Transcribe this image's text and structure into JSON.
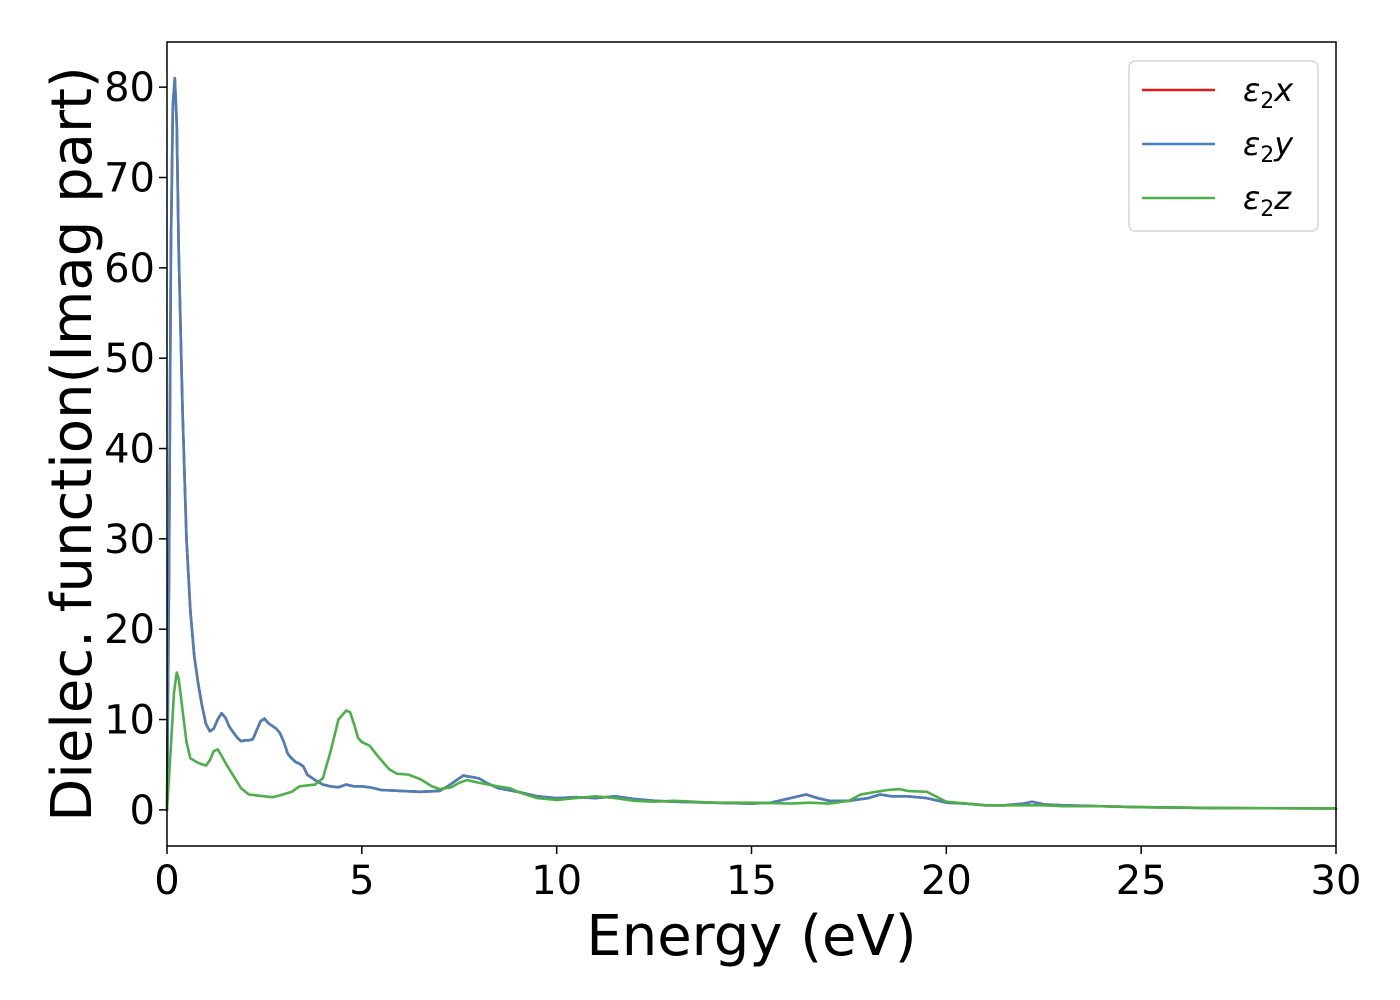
{
  "chart_data": {
    "type": "line",
    "xlabel": "Energy (eV)",
    "ylabel": "Dielec. function(Imag part)",
    "xlim": [
      0,
      30
    ],
    "ylim": [
      -4,
      85
    ],
    "x_ticks": [
      0,
      5,
      10,
      15,
      20,
      25,
      30
    ],
    "y_ticks": [
      0,
      10,
      20,
      30,
      40,
      50,
      60,
      70,
      80
    ],
    "grid": false,
    "legend_position": "top-right",
    "series": [
      {
        "name": "ε2x",
        "symbol": "ε",
        "subscript": "2",
        "suffix": "x",
        "color": "#e41a1c",
        "points": [
          [
            0,
            0
          ],
          [
            0.05,
            25
          ],
          [
            0.1,
            62
          ],
          [
            0.15,
            78
          ],
          [
            0.2,
            81
          ],
          [
            0.25,
            76
          ],
          [
            0.3,
            62
          ],
          [
            0.4,
            44
          ],
          [
            0.5,
            30
          ],
          [
            0.6,
            22
          ],
          [
            0.7,
            17
          ],
          [
            0.8,
            14
          ],
          [
            0.9,
            11.5
          ],
          [
            1.0,
            9.5
          ],
          [
            1.1,
            8.7
          ],
          [
            1.2,
            9.0
          ],
          [
            1.3,
            10.0
          ],
          [
            1.4,
            10.7
          ],
          [
            1.5,
            10.2
          ],
          [
            1.6,
            9.2
          ],
          [
            1.7,
            8.6
          ],
          [
            1.8,
            8.0
          ],
          [
            1.9,
            7.6
          ],
          [
            2.0,
            7.7
          ],
          [
            2.1,
            7.7
          ],
          [
            2.2,
            7.8
          ],
          [
            2.3,
            8.8
          ],
          [
            2.4,
            9.8
          ],
          [
            2.5,
            10.1
          ],
          [
            2.6,
            9.6
          ],
          [
            2.7,
            9.3
          ],
          [
            2.8,
            9.0
          ],
          [
            2.9,
            8.5
          ],
          [
            3.0,
            7.5
          ],
          [
            3.1,
            6.2
          ],
          [
            3.2,
            5.7
          ],
          [
            3.3,
            5.3
          ],
          [
            3.4,
            5.1
          ],
          [
            3.5,
            4.8
          ],
          [
            3.6,
            3.9
          ],
          [
            3.8,
            3.3
          ],
          [
            4.0,
            2.8
          ],
          [
            4.2,
            2.6
          ],
          [
            4.4,
            2.5
          ],
          [
            4.6,
            2.8
          ],
          [
            4.8,
            2.6
          ],
          [
            5.0,
            2.6
          ],
          [
            5.2,
            2.5
          ],
          [
            5.5,
            2.2
          ],
          [
            6.0,
            2.1
          ],
          [
            6.5,
            2.0
          ],
          [
            7.0,
            2.1
          ],
          [
            7.2,
            2.6
          ],
          [
            7.6,
            3.8
          ],
          [
            8.0,
            3.5
          ],
          [
            8.2,
            3.0
          ],
          [
            8.5,
            2.4
          ],
          [
            9.0,
            2.0
          ],
          [
            9.5,
            1.5
          ],
          [
            10.0,
            1.3
          ],
          [
            10.5,
            1.4
          ],
          [
            11.0,
            1.3
          ],
          [
            11.5,
            1.5
          ],
          [
            12.0,
            1.2
          ],
          [
            12.5,
            1.0
          ],
          [
            13.0,
            0.9
          ],
          [
            14.0,
            0.8
          ],
          [
            15.0,
            0.7
          ],
          [
            15.5,
            0.8
          ],
          [
            16.0,
            1.3
          ],
          [
            16.4,
            1.7
          ],
          [
            16.7,
            1.3
          ],
          [
            17.0,
            1.0
          ],
          [
            17.5,
            1.0
          ],
          [
            18.0,
            1.3
          ],
          [
            18.3,
            1.7
          ],
          [
            18.6,
            1.5
          ],
          [
            19.0,
            1.5
          ],
          [
            19.5,
            1.3
          ],
          [
            20.0,
            0.8
          ],
          [
            20.5,
            0.7
          ],
          [
            21.0,
            0.5
          ],
          [
            21.5,
            0.5
          ],
          [
            22.0,
            0.7
          ],
          [
            22.2,
            0.9
          ],
          [
            22.5,
            0.6
          ],
          [
            23.0,
            0.5
          ],
          [
            24.0,
            0.4
          ],
          [
            25.0,
            0.3
          ],
          [
            27.0,
            0.2
          ],
          [
            30.0,
            0.15
          ]
        ]
      },
      {
        "name": "ε2y",
        "symbol": "ε",
        "subscript": "2",
        "suffix": "y",
        "color": "#4a7fb7",
        "points": [
          [
            0,
            0
          ],
          [
            0.05,
            25
          ],
          [
            0.1,
            62
          ],
          [
            0.15,
            78
          ],
          [
            0.2,
            81
          ],
          [
            0.25,
            76
          ],
          [
            0.3,
            62
          ],
          [
            0.4,
            44
          ],
          [
            0.5,
            30
          ],
          [
            0.6,
            22
          ],
          [
            0.7,
            17
          ],
          [
            0.8,
            14
          ],
          [
            0.9,
            11.5
          ],
          [
            1.0,
            9.5
          ],
          [
            1.1,
            8.7
          ],
          [
            1.2,
            9.0
          ],
          [
            1.3,
            10.0
          ],
          [
            1.4,
            10.7
          ],
          [
            1.5,
            10.2
          ],
          [
            1.6,
            9.2
          ],
          [
            1.7,
            8.6
          ],
          [
            1.8,
            8.0
          ],
          [
            1.9,
            7.6
          ],
          [
            2.0,
            7.7
          ],
          [
            2.1,
            7.7
          ],
          [
            2.2,
            7.8
          ],
          [
            2.3,
            8.8
          ],
          [
            2.4,
            9.8
          ],
          [
            2.5,
            10.1
          ],
          [
            2.6,
            9.6
          ],
          [
            2.7,
            9.3
          ],
          [
            2.8,
            9.0
          ],
          [
            2.9,
            8.5
          ],
          [
            3.0,
            7.5
          ],
          [
            3.1,
            6.2
          ],
          [
            3.2,
            5.7
          ],
          [
            3.3,
            5.3
          ],
          [
            3.4,
            5.1
          ],
          [
            3.5,
            4.8
          ],
          [
            3.6,
            3.9
          ],
          [
            3.8,
            3.3
          ],
          [
            4.0,
            2.8
          ],
          [
            4.2,
            2.6
          ],
          [
            4.4,
            2.5
          ],
          [
            4.6,
            2.8
          ],
          [
            4.8,
            2.6
          ],
          [
            5.0,
            2.6
          ],
          [
            5.2,
            2.5
          ],
          [
            5.5,
            2.2
          ],
          [
            6.0,
            2.1
          ],
          [
            6.5,
            2.0
          ],
          [
            7.0,
            2.1
          ],
          [
            7.2,
            2.6
          ],
          [
            7.6,
            3.8
          ],
          [
            8.0,
            3.5
          ],
          [
            8.2,
            3.0
          ],
          [
            8.5,
            2.4
          ],
          [
            9.0,
            2.0
          ],
          [
            9.5,
            1.5
          ],
          [
            10.0,
            1.3
          ],
          [
            10.5,
            1.4
          ],
          [
            11.0,
            1.3
          ],
          [
            11.5,
            1.5
          ],
          [
            12.0,
            1.2
          ],
          [
            12.5,
            1.0
          ],
          [
            13.0,
            0.9
          ],
          [
            14.0,
            0.8
          ],
          [
            15.0,
            0.7
          ],
          [
            15.5,
            0.8
          ],
          [
            16.0,
            1.3
          ],
          [
            16.4,
            1.7
          ],
          [
            16.7,
            1.3
          ],
          [
            17.0,
            1.0
          ],
          [
            17.5,
            1.0
          ],
          [
            18.0,
            1.3
          ],
          [
            18.3,
            1.7
          ],
          [
            18.6,
            1.5
          ],
          [
            19.0,
            1.5
          ],
          [
            19.5,
            1.3
          ],
          [
            20.0,
            0.8
          ],
          [
            20.5,
            0.7
          ],
          [
            21.0,
            0.5
          ],
          [
            21.5,
            0.5
          ],
          [
            22.0,
            0.7
          ],
          [
            22.2,
            0.9
          ],
          [
            22.5,
            0.6
          ],
          [
            23.0,
            0.5
          ],
          [
            24.0,
            0.4
          ],
          [
            25.0,
            0.3
          ],
          [
            27.0,
            0.2
          ],
          [
            30.0,
            0.15
          ]
        ]
      },
      {
        "name": "ε2z",
        "symbol": "ε",
        "subscript": "2",
        "suffix": "z",
        "color": "#4daf4a",
        "points": [
          [
            0,
            0
          ],
          [
            0.1,
            7
          ],
          [
            0.18,
            13
          ],
          [
            0.25,
            15.2
          ],
          [
            0.3,
            14.5
          ],
          [
            0.4,
            11
          ],
          [
            0.5,
            7.5
          ],
          [
            0.6,
            5.7
          ],
          [
            0.8,
            5.2
          ],
          [
            1.0,
            4.9
          ],
          [
            1.1,
            5.5
          ],
          [
            1.2,
            6.5
          ],
          [
            1.3,
            6.7
          ],
          [
            1.4,
            6.0
          ],
          [
            1.5,
            5.2
          ],
          [
            1.7,
            3.8
          ],
          [
            1.9,
            2.4
          ],
          [
            2.1,
            1.7
          ],
          [
            2.3,
            1.6
          ],
          [
            2.5,
            1.5
          ],
          [
            2.7,
            1.4
          ],
          [
            2.9,
            1.6
          ],
          [
            3.2,
            2.0
          ],
          [
            3.4,
            2.6
          ],
          [
            3.6,
            2.7
          ],
          [
            3.8,
            2.8
          ],
          [
            4.0,
            3.5
          ],
          [
            4.2,
            6.5
          ],
          [
            4.4,
            10.0
          ],
          [
            4.5,
            10.5
          ],
          [
            4.6,
            11.0
          ],
          [
            4.7,
            10.8
          ],
          [
            4.8,
            9.5
          ],
          [
            4.9,
            8.0
          ],
          [
            5.0,
            7.5
          ],
          [
            5.2,
            7.1
          ],
          [
            5.4,
            6.0
          ],
          [
            5.7,
            4.5
          ],
          [
            5.9,
            4.0
          ],
          [
            6.2,
            3.9
          ],
          [
            6.5,
            3.4
          ],
          [
            6.8,
            2.6
          ],
          [
            7.0,
            2.3
          ],
          [
            7.3,
            2.5
          ],
          [
            7.5,
            3.0
          ],
          [
            7.7,
            3.3
          ],
          [
            8.0,
            3.0
          ],
          [
            8.5,
            2.6
          ],
          [
            8.8,
            2.4
          ],
          [
            9.0,
            2.0
          ],
          [
            9.5,
            1.3
          ],
          [
            10.0,
            1.1
          ],
          [
            10.5,
            1.3
          ],
          [
            11.0,
            1.5
          ],
          [
            11.5,
            1.3
          ],
          [
            12.0,
            1.0
          ],
          [
            12.5,
            0.9
          ],
          [
            13.0,
            1.0
          ],
          [
            13.5,
            0.9
          ],
          [
            14.0,
            0.8
          ],
          [
            15.0,
            0.8
          ],
          [
            16.0,
            0.7
          ],
          [
            16.5,
            0.8
          ],
          [
            17.0,
            0.7
          ],
          [
            17.5,
            1.0
          ],
          [
            17.8,
            1.7
          ],
          [
            18.2,
            2.0
          ],
          [
            18.5,
            2.2
          ],
          [
            18.8,
            2.3
          ],
          [
            19.0,
            2.1
          ],
          [
            19.5,
            2.0
          ],
          [
            20.0,
            0.9
          ],
          [
            20.5,
            0.7
          ],
          [
            21.0,
            0.5
          ],
          [
            21.5,
            0.5
          ],
          [
            22.0,
            0.5
          ],
          [
            22.5,
            0.5
          ],
          [
            23.0,
            0.4
          ],
          [
            24.0,
            0.4
          ],
          [
            25.0,
            0.3
          ],
          [
            27.0,
            0.2
          ],
          [
            30.0,
            0.15
          ]
        ]
      }
    ]
  }
}
